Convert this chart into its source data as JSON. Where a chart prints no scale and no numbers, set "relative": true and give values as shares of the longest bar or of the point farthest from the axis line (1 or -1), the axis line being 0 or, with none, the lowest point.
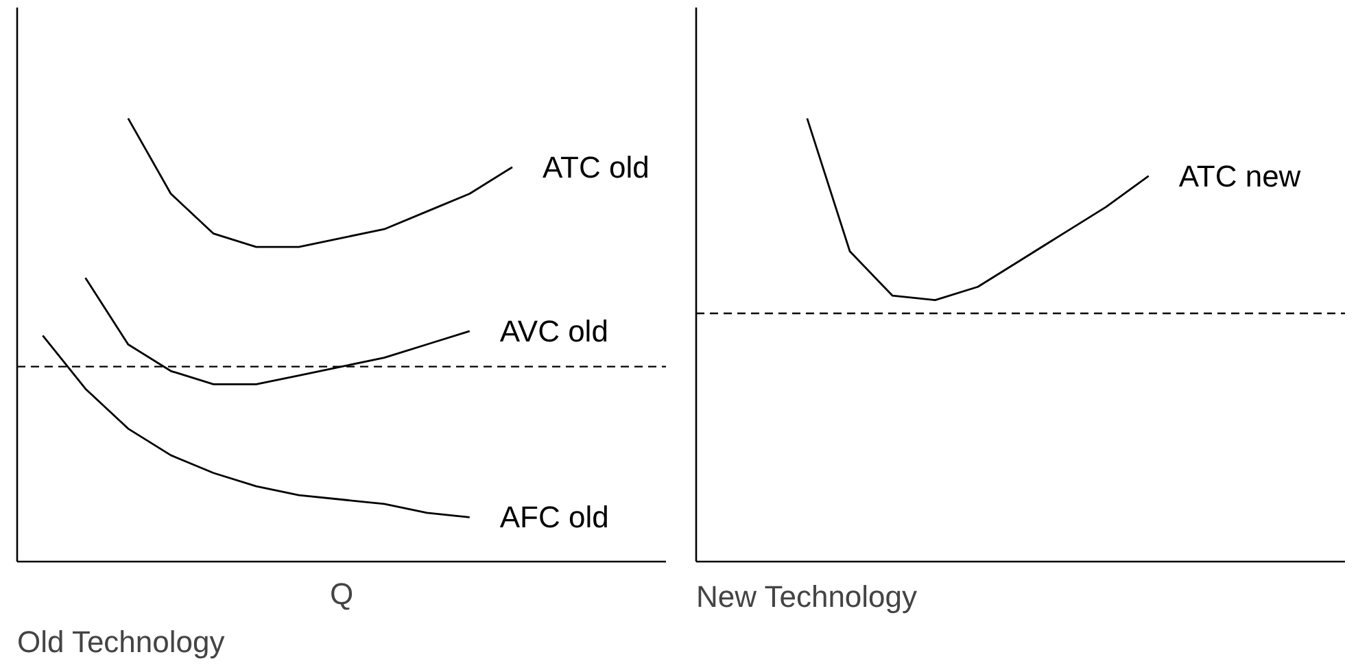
{
  "chart_data": [
    {
      "type": "line",
      "relative": true,
      "xlabel": "Q",
      "annotations": [
        "Old Technology"
      ],
      "legend": false,
      "grid": false,
      "marker": "none",
      "line_style": "solid",
      "categories": [
        null,
        null,
        null,
        null,
        null,
        null,
        null,
        null,
        null,
        null,
        null,
        null
      ],
      "series": [
        {
          "name": "ATC old",
          "color": "#000000",
          "values": [
            null,
            null,
            1,
            0.83,
            0.74,
            0.71,
            0.71,
            0.73,
            0.75,
            0.79,
            0.83,
            0.89
          ]
        },
        {
          "name": "AVC old",
          "color": "#000000",
          "values": [
            null,
            0.64,
            0.49,
            0.43,
            0.4,
            0.4,
            0.42,
            0.44,
            0.46,
            0.49,
            0.52,
            null
          ]
        },
        {
          "name": "AFC old",
          "color": "#000000",
          "values": [
            0.51,
            0.39,
            0.3,
            0.24,
            0.2,
            0.17,
            0.15,
            0.14,
            0.13,
            0.11,
            0.1,
            null
          ]
        }
      ],
      "ref_lines": [
        {
          "axis": "y",
          "value": 0.44,
          "color": "#000000",
          "line_style": "dashed"
        }
      ]
    },
    {
      "type": "line",
      "relative": true,
      "annotations": [
        "New Technology"
      ],
      "legend": false,
      "grid": false,
      "marker": "none",
      "line_style": "solid",
      "categories": [
        null,
        null,
        null,
        null,
        null,
        null,
        null,
        null,
        null,
        null,
        null,
        null
      ],
      "series": [
        {
          "name": "ATC new",
          "color": "#000000",
          "values": [
            null,
            null,
            1,
            0.7,
            0.6,
            0.59,
            0.62,
            0.68,
            0.74,
            0.8,
            0.87,
            null
          ]
        }
      ],
      "ref_lines": [
        {
          "axis": "y",
          "value": 0.56,
          "color": "#000000",
          "line_style": "dashed"
        }
      ]
    }
  ]
}
